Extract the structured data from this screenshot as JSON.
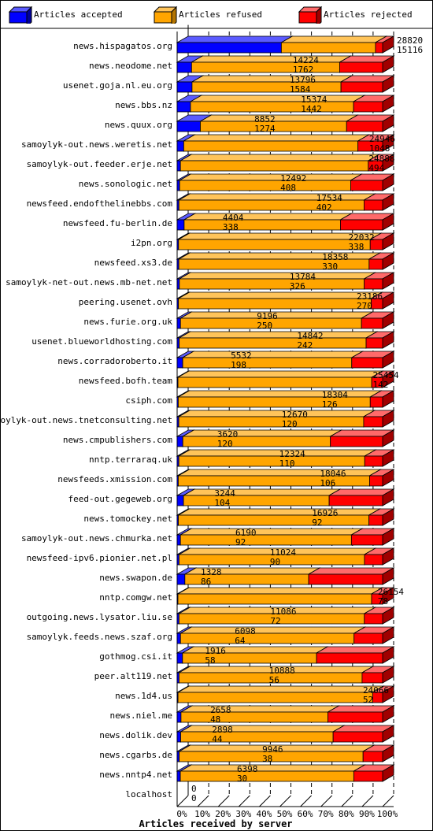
{
  "chart_data": {
    "type": "bar",
    "orientation": "horizontal",
    "stacked": true,
    "style": "3d",
    "title": "",
    "xlabel": "Articles received by server",
    "ylabel": "",
    "xlim": [
      0,
      100
    ],
    "x_ticks": [
      "0%",
      "10%",
      "20%",
      "30%",
      "40%",
      "50%",
      "60%",
      "70%",
      "80%",
      "90%",
      "100%"
    ],
    "grid": "vertical dashed",
    "legend_position": "top",
    "legend": [
      {
        "label": "Articles accepted",
        "color": "#0000ff"
      },
      {
        "label": "Articles refused",
        "color": "#ffa500"
      },
      {
        "label": "Articles rejected",
        "color": "#ff0000"
      }
    ],
    "rows": [
      {
        "server": "news.hispagatos.org",
        "total": "28820",
        "rejected": "15116",
        "accepted": 14616,
        "refused": 13204,
        "rejected_value": 1000
      },
      {
        "server": "news.neodome.net",
        "total": "14224",
        "rejected": "1762",
        "accepted": 1000,
        "refused": 10250,
        "rejected_value": 2974
      },
      {
        "server": "usenet.goja.nl.eu.org",
        "total": "13796",
        "rejected": "1584",
        "accepted": 1000,
        "refused": 10000,
        "rejected_value": 2796
      },
      {
        "server": "news.bbs.nz",
        "total": "15374",
        "rejected": "1442",
        "accepted": 1000,
        "refused": 12200,
        "rejected_value": 2174
      },
      {
        "server": "news.quux.org",
        "total": "8852",
        "rejected": "1274",
        "accepted": 1000,
        "refused": 6300,
        "rejected_value": 1552
      },
      {
        "server": "samoylyk-out.news.weretis.net",
        "total": "24946",
        "rejected": "1048",
        "accepted": 800,
        "refused": 21150,
        "rejected_value": 2996
      },
      {
        "server": "samoylyk-out.feeder.erje.net",
        "total": "24888",
        "rejected": "494",
        "accepted": 400,
        "refused": 22750,
        "rejected_value": 1738
      },
      {
        "server": "news.sonologic.net",
        "total": "12492",
        "rejected": "408",
        "accepted": 150,
        "refused": 10400,
        "rejected_value": 1942
      },
      {
        "server": "newsfeed.endofthelinebbs.com",
        "total": "17534",
        "rejected": "402",
        "accepted": 150,
        "refused": 15800,
        "rejected_value": 1584
      },
      {
        "server": "newsfeed.fu-berlin.de",
        "total": "4404",
        "rejected": "338",
        "accepted": 150,
        "refused": 3350,
        "rejected_value": 904
      },
      {
        "server": "i2pn.org",
        "total": "22032",
        "rejected": "338",
        "accepted": 150,
        "refused": 20550,
        "rejected_value": 1332
      },
      {
        "server": "newsfeed.xs3.de",
        "total": "18358",
        "rejected": "330",
        "accepted": 150,
        "refused": 17000,
        "rejected_value": 1208
      },
      {
        "server": "samoylyk-net-out.news.mb-net.net",
        "total": "13784",
        "rejected": "326",
        "accepted": 150,
        "refused": 12400,
        "rejected_value": 1234
      },
      {
        "server": "peering.usenet.ovh",
        "total": "23186",
        "rejected": "270",
        "accepted": 150,
        "refused": 21750,
        "rejected_value": 1286
      },
      {
        "server": "news.furie.org.uk",
        "total": "9196",
        "rejected": "250",
        "accepted": 150,
        "refused": 8100,
        "rejected_value": 946
      },
      {
        "server": "usenet.blueworldhosting.com",
        "total": "14842",
        "rejected": "242",
        "accepted": 150,
        "refused": 13500,
        "rejected_value": 1192
      },
      {
        "server": "news.corradoroberto.it",
        "total": "5532",
        "rejected": "198",
        "accepted": 150,
        "refused": 4550,
        "rejected_value": 832
      },
      {
        "server": "newsfeed.bofh.team",
        "total": "25454",
        "rejected": "142",
        "accepted": 100,
        "refused": 24000,
        "rejected_value": 1354
      },
      {
        "server": "csiph.com",
        "total": "18304",
        "rejected": "126",
        "accepted": 100,
        "refused": 17100,
        "rejected_value": 1104
      },
      {
        "server": "samoylyk-out.news.tnetconsulting.net",
        "total": "12670",
        "rejected": "120",
        "accepted": 100,
        "refused": 11400,
        "rejected_value": 1170
      },
      {
        "server": "news.cmpublishers.com",
        "total": "3620",
        "rejected": "120",
        "accepted": 100,
        "refused": 2600,
        "rejected_value": 920
      },
      {
        "server": "nntp.terraraq.uk",
        "total": "12324",
        "rejected": "110",
        "accepted": 100,
        "refused": 11150,
        "rejected_value": 1074
      },
      {
        "server": "newsfeeds.xmission.com",
        "total": "18046",
        "rejected": "106",
        "accepted": 100,
        "refused": 16800,
        "rejected_value": 1146
      },
      {
        "server": "feed-out.gegeweb.org",
        "total": "3244",
        "rejected": "104",
        "accepted": 100,
        "refused": 2300,
        "rejected_value": 844
      },
      {
        "server": "news.tomockey.net",
        "total": "16926",
        "rejected": "92",
        "accepted": 100,
        "refused": 15700,
        "rejected_value": 1126
      },
      {
        "server": "samoylyk-out.news.chmurka.net",
        "total": "6190",
        "rejected": "92",
        "accepted": 100,
        "refused": 5150,
        "rejected_value": 940
      },
      {
        "server": "newsfeed-ipv6.pionier.net.pl",
        "total": "11024",
        "rejected": "90",
        "accepted": 100,
        "refused": 9950,
        "rejected_value": 974
      },
      {
        "server": "news.swapon.de",
        "total": "1328",
        "rejected": "86",
        "accepted": 50,
        "refused": 800,
        "rejected_value": 478
      },
      {
        "server": "nntp.comgw.net",
        "total": "26154",
        "rejected": "78",
        "accepted": 100,
        "refused": 24650,
        "rejected_value": 1404
      },
      {
        "server": "outgoing.news.lysator.liu.se",
        "total": "11086",
        "rejected": "72",
        "accepted": 100,
        "refused": 10000,
        "rejected_value": 986
      },
      {
        "server": "samoylyk.feeds.news.szaf.org",
        "total": "6098",
        "rejected": "64",
        "accepted": 100,
        "refused": 5150,
        "rejected_value": 848
      },
      {
        "server": "gothmog.csi.it",
        "total": "1916",
        "rejected": "58",
        "accepted": 50,
        "refused": 1250,
        "rejected_value": 616
      },
      {
        "server": "peer.alt119.net",
        "total": "10888",
        "rejected": "56",
        "accepted": 100,
        "refused": 9700,
        "rejected_value": 1088
      },
      {
        "server": "news.1d4.us",
        "total": "24066",
        "rejected": "52",
        "accepted": 100,
        "refused": 22800,
        "rejected_value": 1166
      },
      {
        "server": "news.niel.me",
        "total": "2658",
        "rejected": "48",
        "accepted": 50,
        "refused": 1900,
        "rejected_value": 708
      },
      {
        "server": "news.dolik.dev",
        "total": "2898",
        "rejected": "44",
        "accepted": 50,
        "refused": 2150,
        "rejected_value": 698
      },
      {
        "server": "news.cgarbs.de",
        "total": "9946",
        "rejected": "38",
        "accepted": 100,
        "refused": 8900,
        "rejected_value": 946
      },
      {
        "server": "news.nntp4.net",
        "total": "6398",
        "rejected": "30",
        "accepted": 100,
        "refused": 5400,
        "rejected_value": 898
      },
      {
        "server": "localhost",
        "total": "0",
        "rejected": "0",
        "accepted": 0,
        "refused": 0,
        "rejected_value": 0
      }
    ]
  }
}
